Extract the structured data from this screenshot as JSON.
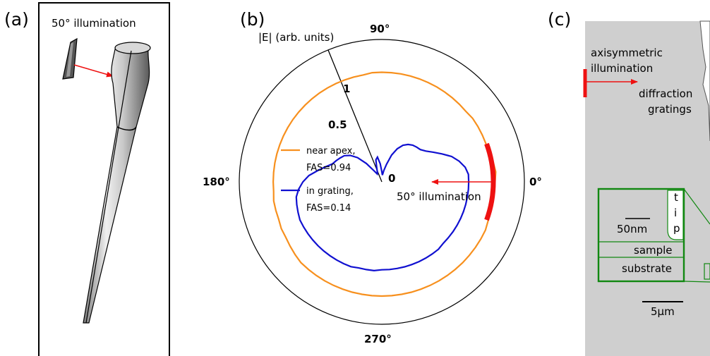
{
  "panel_a": {
    "label": "(a)",
    "illumination_text": "50° illumination"
  },
  "panel_b": {
    "label": "(b)",
    "radial_axis_label": "|E| (arb. units)",
    "angle_ticks": [
      "90°",
      "180°",
      "0°",
      "270°"
    ],
    "radial_ticks": [
      "1",
      "0.5",
      "0"
    ],
    "illumination_text": "50° illumination",
    "legend": [
      {
        "line1": "near apex,",
        "line2": "FAS=0.94",
        "color": "#F7901E"
      },
      {
        "line1": "in grating,",
        "line2": "FAS=0.14",
        "color": "#1010D0"
      }
    ],
    "illumination_color": "#EE1111"
  },
  "panel_c": {
    "label": "(c)",
    "illumination_text_1": "axisymmetric",
    "illumination_text_2": "illumination",
    "gratings_text_1": "diffraction",
    "gratings_text_2": "gratings",
    "inset": {
      "tip_letters": [
        "t",
        "i",
        "p"
      ],
      "scale": "50nm",
      "sample": "sample",
      "substrate": "substrate",
      "color": "#118811"
    },
    "scale_main": "5μm"
  },
  "chart_data": {
    "type": "polar",
    "radial_range": [
      0,
      1
    ],
    "radial_ticks": [
      0,
      0.5,
      1
    ],
    "angle_ticks_deg": [
      0,
      90,
      180,
      270
    ],
    "series": [
      {
        "name": "near apex, FAS=0.94",
        "r": [
          0.99,
          1.0,
          0.99,
          0.98,
          0.97,
          0.97,
          0.97,
          0.97,
          0.96,
          0.96,
          0.96,
          0.96,
          0.96,
          0.96,
          0.96,
          0.96,
          0.96,
          0.96,
          0.96,
          0.96,
          0.95,
          0.95,
          0.95,
          0.95,
          0.95,
          0.95,
          0.95,
          0.95,
          0.95,
          0.95,
          0.95,
          0.95,
          0.95,
          0.95,
          0.95,
          0.95,
          0.95,
          0.95,
          0.96,
          0.96,
          0.96,
          0.97,
          0.97,
          0.98,
          0.99,
          1.0,
          1.0,
          1.0,
          1.0,
          1.0,
          1.0,
          1.0,
          1.0,
          1.0,
          1.0,
          1.0,
          1.0,
          1.0,
          1.0,
          1.0,
          1.0,
          1.0,
          1.0,
          1.0,
          1.0,
          1.0,
          1.0,
          1.0,
          0.99,
          0.98,
          0.97,
          0.96,
          0.97
        ]
      },
      {
        "name": "in grating, FAS=0.14",
        "r": [
          0.76,
          0.76,
          0.74,
          0.7,
          0.65,
          0.58,
          0.52,
          0.47,
          0.44,
          0.43,
          0.42,
          0.4,
          0.37,
          0.32,
          0.25,
          0.16,
          0.1,
          0.06,
          0.09,
          0.16,
          0.22,
          0.2,
          0.13,
          0.09,
          0.08,
          0.12,
          0.21,
          0.3,
          0.36,
          0.4,
          0.42,
          0.44,
          0.46,
          0.51,
          0.57,
          0.64,
          0.69,
          0.73,
          0.76,
          0.77,
          0.78,
          0.79,
          0.79,
          0.79,
          0.79,
          0.79,
          0.79,
          0.79,
          0.79,
          0.79,
          0.79,
          0.78,
          0.78,
          0.78,
          0.77,
          0.77,
          0.77,
          0.77,
          0.77,
          0.77,
          0.77,
          0.77,
          0.77,
          0.76,
          0.76,
          0.76,
          0.76,
          0.76,
          0.76,
          0.76,
          0.76,
          0.76,
          0.76
        ]
      }
    ],
    "illumination_arc_deg": [
      -20,
      20
    ]
  }
}
